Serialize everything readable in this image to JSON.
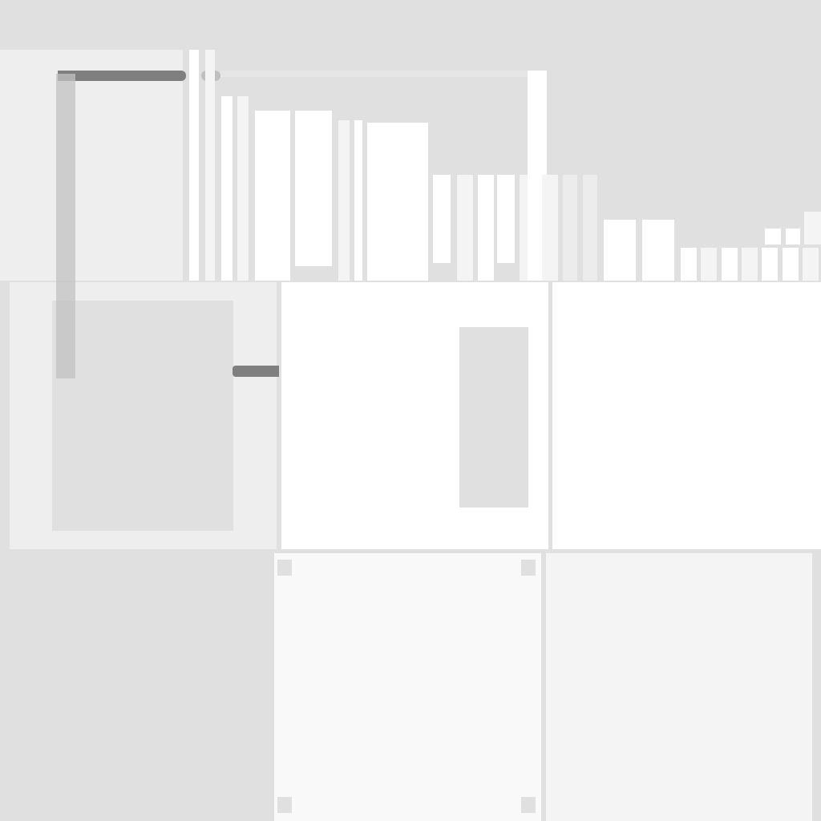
{
  "screen": {
    "title": "",
    "background_color": "#e0e0e0",
    "accent_dark": "#7f7f7f",
    "accent_mid": "#c0c0c0"
  },
  "regions": {
    "top_strip": {
      "visible_text": ""
    },
    "left_panel": {
      "visible_text": ""
    },
    "bar_strip": {
      "visible_text": ""
    },
    "cards": [
      {
        "name": "card-1",
        "visible_text": ""
      },
      {
        "name": "card-2",
        "visible_text": ""
      },
      {
        "name": "card-3",
        "visible_text": ""
      },
      {
        "name": "card-4",
        "visible_text": ""
      },
      {
        "name": "card-5",
        "visible_text": ""
      }
    ]
  }
}
